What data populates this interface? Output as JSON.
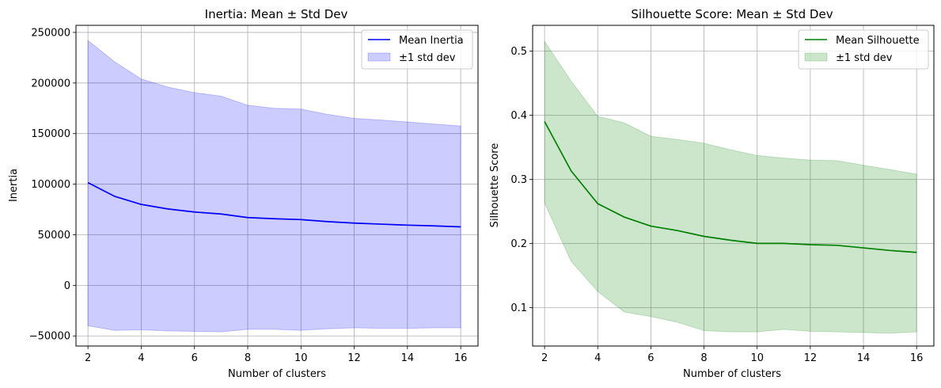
{
  "chart_data": [
    {
      "type": "line",
      "title": "Inertia: Mean ± Std Dev",
      "xlabel": "Number of clusters",
      "ylabel": "Inertia",
      "xlim": [
        1.55,
        16.65
      ],
      "ylim": [
        -60000,
        257000
      ],
      "xticks": [
        2,
        4,
        6,
        8,
        10,
        12,
        14,
        16
      ],
      "yticks": [
        -50000,
        0,
        50000,
        100000,
        150000,
        200000,
        250000
      ],
      "grid": true,
      "legend_position": "top-right",
      "x": [
        2,
        3,
        4,
        5,
        6,
        7,
        8,
        9,
        10,
        11,
        12,
        13,
        14,
        15,
        16
      ],
      "series": [
        {
          "name": "Mean Inertia",
          "kind": "line",
          "color": "#0000ff",
          "values": [
            101500,
            88000,
            80000,
            75500,
            72500,
            70500,
            67000,
            65800,
            65000,
            63000,
            61500,
            60500,
            59500,
            58800,
            57800
          ]
        },
        {
          "name": "±1 std dev",
          "kind": "band",
          "color": "#0000ff",
          "upper": [
            242000,
            221000,
            204000,
            196000,
            190500,
            187000,
            178000,
            175000,
            174200,
            169000,
            165000,
            163500,
            161500,
            159500,
            157500
          ],
          "lower": [
            -40000,
            -44500,
            -44000,
            -45000,
            -45500,
            -46000,
            -43500,
            -43500,
            -44500,
            -43000,
            -42000,
            -42500,
            -42500,
            -42000,
            -42000
          ]
        }
      ]
    },
    {
      "type": "line",
      "title": "Silhouette Score: Mean ± Std Dev",
      "xlabel": "Number of clusters",
      "ylabel": "Silhouette Score",
      "xlim": [
        1.55,
        16.65
      ],
      "ylim": [
        0.04,
        0.54
      ],
      "xticks": [
        2,
        4,
        6,
        8,
        10,
        12,
        14,
        16
      ],
      "yticks": [
        0.1,
        0.2,
        0.3,
        0.4,
        0.5
      ],
      "grid": true,
      "legend_position": "top-right",
      "x": [
        2,
        3,
        4,
        5,
        6,
        7,
        8,
        9,
        10,
        11,
        12,
        13,
        14,
        15,
        16
      ],
      "series": [
        {
          "name": "Mean Silhouette",
          "kind": "line",
          "color": "#008000",
          "values": [
            0.39,
            0.313,
            0.262,
            0.241,
            0.227,
            0.22,
            0.211,
            0.205,
            0.2,
            0.2,
            0.198,
            0.197,
            0.193,
            0.189,
            0.186
          ]
        },
        {
          "name": "±1 std dev",
          "kind": "band",
          "color": "#008000",
          "upper": [
            0.515,
            0.453,
            0.398,
            0.388,
            0.367,
            0.362,
            0.356,
            0.346,
            0.337,
            0.333,
            0.33,
            0.329,
            0.322,
            0.315,
            0.308
          ],
          "lower": [
            0.263,
            0.172,
            0.125,
            0.093,
            0.086,
            0.077,
            0.064,
            0.062,
            0.062,
            0.066,
            0.063,
            0.062,
            0.061,
            0.06,
            0.062
          ]
        }
      ]
    }
  ]
}
